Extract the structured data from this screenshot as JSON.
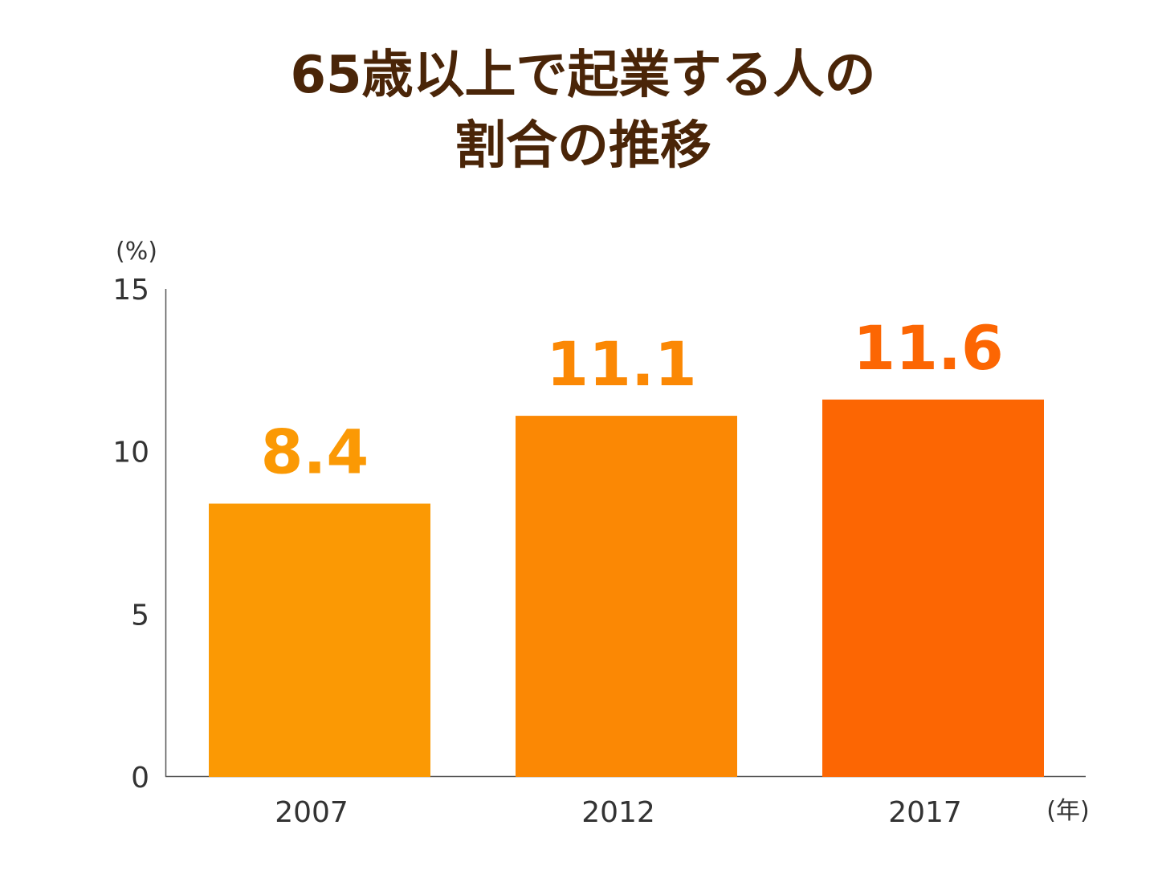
{
  "chart_data": {
    "type": "bar",
    "title_lines": [
      "65歳以上で起業する人の",
      "割合の推移"
    ],
    "y_unit": "(%)",
    "x_unit": "(年)",
    "categories": [
      "2007",
      "2012",
      "2017"
    ],
    "values": [
      8.4,
      11.1,
      11.6
    ],
    "value_labels": [
      "8.4",
      "11.1",
      "11.6"
    ],
    "bar_colors": [
      "#fb9904",
      "#fb8804",
      "#fc6603"
    ],
    "ylim": [
      0,
      15
    ],
    "yticks": [
      0,
      5,
      10,
      15
    ],
    "ytick_labels": [
      "0",
      "5",
      "10",
      "15"
    ],
    "grid": false,
    "legend": "none"
  }
}
